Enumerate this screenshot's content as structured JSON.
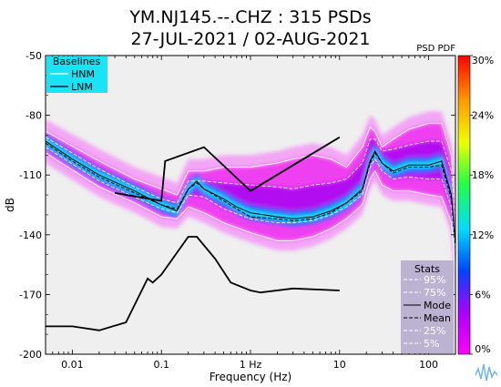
{
  "title_line1": "YM.NJ145.--.CHZ : 315 PSDs",
  "title_line2": "27-JUL-2021 / 02-AUG-2021",
  "psd_pdf_label": "PSD PDF",
  "colors": {
    "plot_bg": "#efefef",
    "baseline_box": "#1ae3f5",
    "stats_box": "#bcb2d1",
    "colorbar": [
      "#ff00ff",
      "#aa00ff",
      "#0044ff",
      "#00ddff",
      "#22ff44",
      "#eeff00",
      "#ff9900",
      "#ff0000"
    ]
  },
  "chart_data": {
    "type": "heatmap",
    "title": "YM.NJ145.--.CHZ : 315 PSDs",
    "subtitle": "27-JUL-2021 / 02-AUG-2021",
    "xlabel": "Frequency (Hz)",
    "ylabel": "dB",
    "x_scale": "log",
    "xlim": [
      0.005,
      200
    ],
    "ylim": [
      -200,
      -50
    ],
    "x_ticks": [
      {
        "value": 0.01,
        "label": "0.01"
      },
      {
        "value": 0.1,
        "label": "0.1"
      },
      {
        "value": 1,
        "label": "1 Hz"
      },
      {
        "value": 10,
        "label": "10"
      },
      {
        "value": 100,
        "label": "100"
      }
    ],
    "y_ticks": [
      {
        "value": -50,
        "label": "-50"
      },
      {
        "value": -80,
        "label": "-80"
      },
      {
        "value": -110,
        "label": "-110"
      },
      {
        "value": -140,
        "label": "-140"
      },
      {
        "value": -170,
        "label": "-170"
      },
      {
        "value": -200,
        "label": "-200"
      }
    ],
    "colorbar": {
      "range": [
        0,
        30
      ],
      "ticks": [
        {
          "value": 0,
          "label": "0%"
        },
        {
          "value": 6,
          "label": "6%"
        },
        {
          "value": 12,
          "label": "12%"
        },
        {
          "value": 18,
          "label": "18%"
        },
        {
          "value": 24,
          "label": "24%"
        },
        {
          "value": 30,
          "label": "30%"
        }
      ]
    },
    "baselines": {
      "title": "Baselines",
      "entries": [
        {
          "name": "HNM",
          "color": "#ffffff"
        },
        {
          "name": "LNM",
          "color": "#000000"
        }
      ],
      "HNM": {
        "x": [
          0.03,
          0.1,
          0.11,
          0.3,
          1,
          10
        ],
        "y": [
          -119,
          -123,
          -103,
          -96,
          -118,
          -91
        ]
      },
      "LNM": {
        "x": [
          0.005,
          0.01,
          0.02,
          0.04,
          0.07,
          0.08,
          0.1,
          0.2,
          0.25,
          0.4,
          0.6,
          1,
          1.3,
          3,
          10
        ],
        "y": [
          -186,
          -186,
          -188,
          -184,
          -162,
          -164,
          -160,
          -141,
          -141,
          -152,
          -164,
          -168,
          -169,
          -167,
          -168
        ]
      }
    },
    "stats": {
      "title": "Stats",
      "entries": [
        {
          "name": "95%",
          "style": "dashed",
          "color": "#ffffff"
        },
        {
          "name": "75%",
          "style": "dashed",
          "color": "#ffffff"
        },
        {
          "name": "Mode",
          "style": "solid",
          "color": "#000000"
        },
        {
          "name": "Mean",
          "style": "dashed",
          "color": "#000000"
        },
        {
          "name": "25%",
          "style": "dashed",
          "color": "#ffffff"
        },
        {
          "name": "5%",
          "style": "dashed",
          "color": "#ffffff"
        }
      ]
    },
    "series": [
      {
        "name": "Mode",
        "x": [
          0.005,
          0.01,
          0.02,
          0.05,
          0.1,
          0.15,
          0.2,
          0.25,
          0.3,
          0.5,
          0.7,
          1,
          2,
          3,
          5,
          8,
          12,
          18,
          22,
          25,
          30,
          40,
          60,
          100,
          140,
          180,
          200
        ],
        "y": [
          -93,
          -102,
          -110,
          -118,
          -125,
          -128,
          -117,
          -113,
          -117,
          -122,
          -126,
          -129,
          -131,
          -132,
          -131,
          -128,
          -124,
          -117,
          -103,
          -98,
          -104,
          -108,
          -105,
          -105,
          -103,
          -120,
          -145
        ]
      },
      {
        "name": "Mean",
        "x": [
          0.005,
          0.01,
          0.02,
          0.05,
          0.1,
          0.15,
          0.2,
          0.25,
          0.3,
          0.5,
          0.7,
          1,
          2,
          3,
          5,
          8,
          12,
          18,
          22,
          25,
          30,
          40,
          60,
          100,
          140,
          180,
          200
        ],
        "y": [
          -94,
          -103,
          -111,
          -119,
          -125,
          -127,
          -117,
          -114,
          -117,
          -123,
          -127,
          -131,
          -132,
          -133,
          -132,
          -129,
          -124,
          -118,
          -104,
          -99,
          -104,
          -109,
          -106,
          -106,
          -105,
          -122,
          -146
        ]
      },
      {
        "name": "95%",
        "x": [
          0.005,
          0.02,
          0.05,
          0.1,
          0.15,
          0.2,
          0.3,
          0.5,
          1,
          2,
          3,
          5,
          8,
          12,
          18,
          22,
          25,
          30,
          40,
          60,
          100,
          140,
          180,
          200
        ],
        "y": [
          -88,
          -103,
          -112,
          -117,
          -120,
          -108,
          -108,
          -106,
          -106,
          -104,
          -102,
          -100,
          -102,
          -106,
          -96,
          -86,
          -88,
          -96,
          -92,
          -87,
          -84,
          -84,
          -100,
          -125
        ]
      },
      {
        "name": "75%",
        "x": [
          0.005,
          0.02,
          0.05,
          0.1,
          0.15,
          0.2,
          0.3,
          0.5,
          1,
          2,
          3,
          5,
          8,
          12,
          18,
          22,
          25,
          30,
          40,
          60,
          100,
          140,
          180,
          200
        ],
        "y": [
          -91,
          -107,
          -116,
          -122,
          -124,
          -113,
          -113,
          -114,
          -115,
          -116,
          -117,
          -115,
          -114,
          -112,
          -104,
          -92,
          -92,
          -98,
          -97,
          -95,
          -93,
          -93,
          -108,
          -132
        ]
      },
      {
        "name": "25%",
        "x": [
          0.005,
          0.02,
          0.05,
          0.1,
          0.15,
          0.2,
          0.3,
          0.5,
          1,
          2,
          3,
          5,
          8,
          12,
          18,
          22,
          25,
          30,
          40,
          60,
          100,
          140,
          180,
          200
        ],
        "y": [
          -96,
          -113,
          -121,
          -127,
          -129,
          -120,
          -121,
          -127,
          -132,
          -134,
          -134,
          -133,
          -130,
          -126,
          -120,
          -106,
          -102,
          -108,
          -112,
          -111,
          -112,
          -112,
          -126,
          -150
        ]
      },
      {
        "name": "5%",
        "x": [
          0.005,
          0.02,
          0.05,
          0.1,
          0.15,
          0.2,
          0.3,
          0.5,
          1,
          2,
          3,
          5,
          8,
          12,
          18,
          22,
          25,
          30,
          40,
          60,
          100,
          140,
          180,
          200
        ],
        "y": [
          -99,
          -116,
          -124,
          -131,
          -132,
          -126,
          -129,
          -134,
          -139,
          -143,
          -143,
          -141,
          -137,
          -132,
          -125,
          -112,
          -108,
          -115,
          -118,
          -118,
          -120,
          -121,
          -134,
          -160
        ]
      }
    ]
  }
}
